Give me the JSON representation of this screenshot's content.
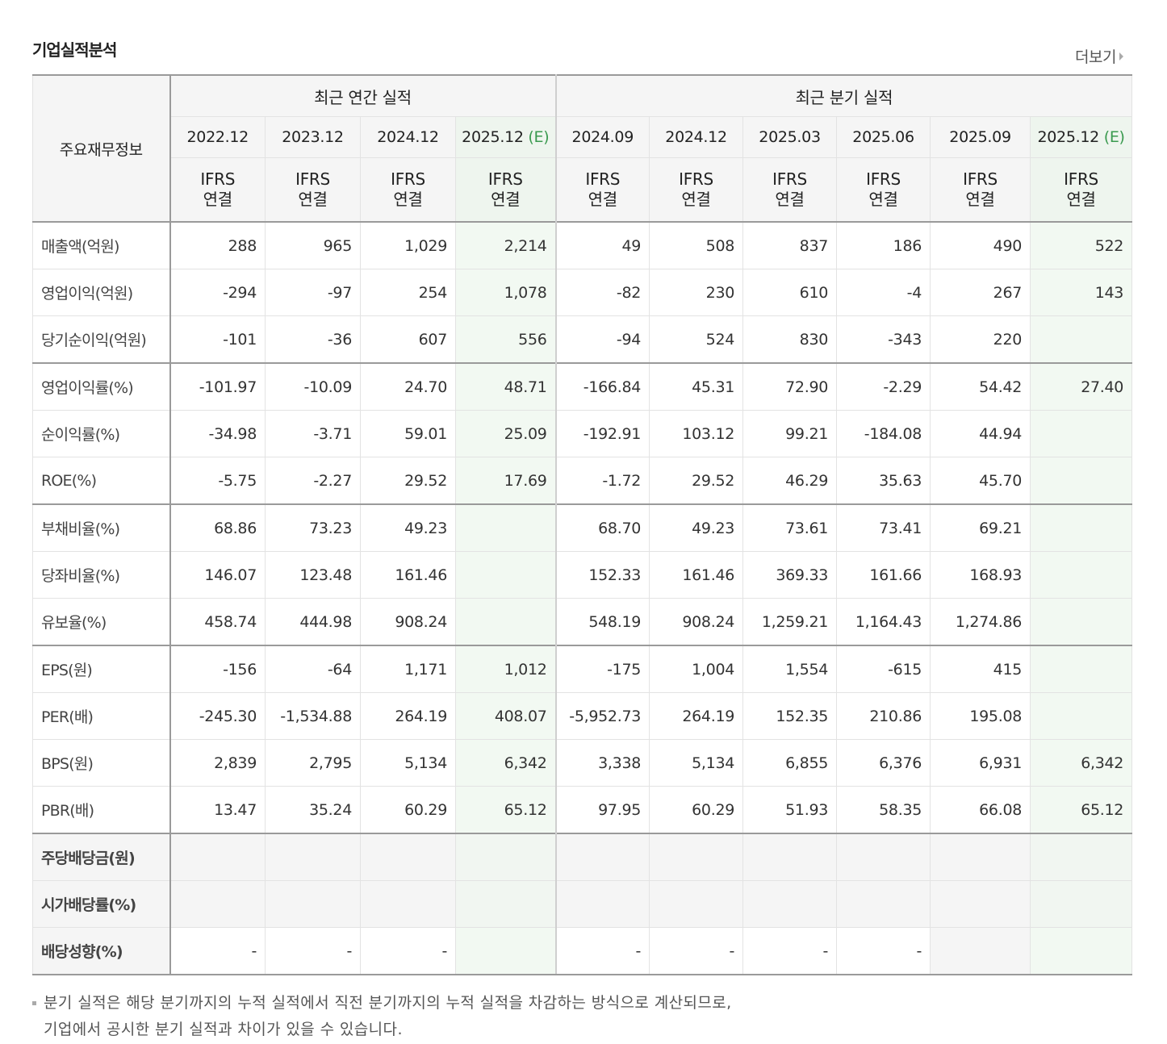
{
  "section_title": "기업실적분석",
  "more_label": "더보기",
  "table": {
    "row_label_header": "주요재무정보",
    "groups": [
      {
        "label": "최근 연간 실적"
      },
      {
        "label": "최근 분기 실적"
      }
    ],
    "periods": [
      {
        "label": "2022.12",
        "est": ""
      },
      {
        "label": "2023.12",
        "est": ""
      },
      {
        "label": "2024.12",
        "est": ""
      },
      {
        "label": "2025.12",
        "est": "(E)"
      },
      {
        "label": "2024.09",
        "est": ""
      },
      {
        "label": "2024.12",
        "est": ""
      },
      {
        "label": "2025.03",
        "est": ""
      },
      {
        "label": "2025.06",
        "est": ""
      },
      {
        "label": "2025.09",
        "est": ""
      },
      {
        "label": "2025.12",
        "est": "(E)"
      }
    ],
    "accounting": {
      "line1": "IFRS",
      "line2": "연결"
    },
    "rows": [
      {
        "label": "매출액(억원)",
        "values": [
          "288",
          "965",
          "1,029",
          "2,214",
          "49",
          "508",
          "837",
          "186",
          "490",
          "522"
        ]
      },
      {
        "label": "영업이익(억원)",
        "values": [
          "-294",
          "-97",
          "254",
          "1,078",
          "-82",
          "230",
          "610",
          "-4",
          "267",
          "143"
        ]
      },
      {
        "label": "당기순이익(억원)",
        "values": [
          "-101",
          "-36",
          "607",
          "556",
          "-94",
          "524",
          "830",
          "-343",
          "220",
          ""
        ]
      },
      {
        "label": "영업이익률(%)",
        "values": [
          "-101.97",
          "-10.09",
          "24.70",
          "48.71",
          "-166.84",
          "45.31",
          "72.90",
          "-2.29",
          "54.42",
          "27.40"
        ]
      },
      {
        "label": "순이익률(%)",
        "values": [
          "-34.98",
          "-3.71",
          "59.01",
          "25.09",
          "-192.91",
          "103.12",
          "99.21",
          "-184.08",
          "44.94",
          ""
        ]
      },
      {
        "label": "ROE(%)",
        "values": [
          "-5.75",
          "-2.27",
          "29.52",
          "17.69",
          "-1.72",
          "29.52",
          "46.29",
          "35.63",
          "45.70",
          ""
        ]
      },
      {
        "label": "부채비율(%)",
        "values": [
          "68.86",
          "73.23",
          "49.23",
          "",
          "68.70",
          "49.23",
          "73.61",
          "73.41",
          "69.21",
          ""
        ]
      },
      {
        "label": "당좌비율(%)",
        "values": [
          "146.07",
          "123.48",
          "161.46",
          "",
          "152.33",
          "161.46",
          "369.33",
          "161.66",
          "168.93",
          ""
        ]
      },
      {
        "label": "유보율(%)",
        "values": [
          "458.74",
          "444.98",
          "908.24",
          "",
          "548.19",
          "908.24",
          "1,259.21",
          "1,164.43",
          "1,274.86",
          ""
        ]
      },
      {
        "label": "EPS(원)",
        "values": [
          "-156",
          "-64",
          "1,171",
          "1,012",
          "-175",
          "1,004",
          "1,554",
          "-615",
          "415",
          ""
        ]
      },
      {
        "label": "PER(배)",
        "values": [
          "-245.30",
          "-1,534.88",
          "264.19",
          "408.07",
          "-5,952.73",
          "264.19",
          "152.35",
          "210.86",
          "195.08",
          ""
        ]
      },
      {
        "label": "BPS(원)",
        "values": [
          "2,839",
          "2,795",
          "5,134",
          "6,342",
          "3,338",
          "5,134",
          "6,855",
          "6,376",
          "6,931",
          "6,342"
        ]
      },
      {
        "label": "PBR(배)",
        "values": [
          "13.47",
          "35.24",
          "60.29",
          "65.12",
          "97.95",
          "60.29",
          "51.93",
          "58.35",
          "66.08",
          "65.12"
        ]
      },
      {
        "label": "주당배당금(원)",
        "values": [
          "",
          "",
          "",
          "",
          "",
          "",
          "",
          "",
          "",
          ""
        ]
      },
      {
        "label": "시가배당률(%)",
        "values": [
          "",
          "",
          "",
          "",
          "",
          "",
          "",
          "",
          "",
          ""
        ]
      },
      {
        "label": "배당성향(%)",
        "values": [
          "-",
          "-",
          "-",
          "",
          "-",
          "-",
          "-",
          "-",
          "",
          ""
        ]
      }
    ]
  },
  "notes": {
    "line1": "분기 실적은 해당 분기까지의 누적 실적에서 직전 분기까지의 누적 실적을 차감하는 방식으로 계산되므로,",
    "line2": "기업에서 공시한 분기 실적과 차이가 있을 수 있습니다."
  }
}
